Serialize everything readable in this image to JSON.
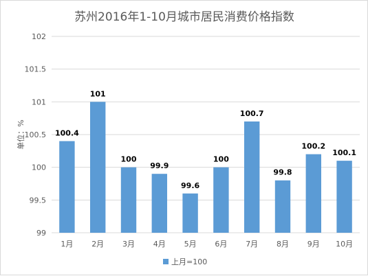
{
  "chart_data": {
    "type": "bar",
    "title": "苏州2016年1-10月城市居民消费价格指数",
    "ylabel": "单位：%",
    "categories": [
      "1月",
      "2月",
      "3月",
      "4月",
      "5月",
      "6月",
      "7月",
      "8月",
      "9月",
      "10月"
    ],
    "series": [
      {
        "name": "上月=100",
        "values": [
          100.4,
          101,
          100,
          99.9,
          99.6,
          100,
          100.7,
          99.8,
          100.2,
          100.1
        ]
      }
    ],
    "data_labels": [
      "100.4",
      "101",
      "100",
      "99.9",
      "99.6",
      "100",
      "100.7",
      "99.8",
      "100.2",
      "100.1"
    ],
    "ylim": [
      99,
      102
    ],
    "yticks": [
      99,
      99.5,
      100,
      100.5,
      101,
      101.5,
      102
    ],
    "ytick_labels": [
      "99",
      "99.5",
      "100",
      "100.5",
      "101",
      "101.5",
      "102"
    ],
    "grid": true,
    "legend_position": "bottom",
    "colors": {
      "bar": "#5b9bd5",
      "grid": "#d9d9d9",
      "text": "#595959",
      "label": "#000000"
    }
  }
}
